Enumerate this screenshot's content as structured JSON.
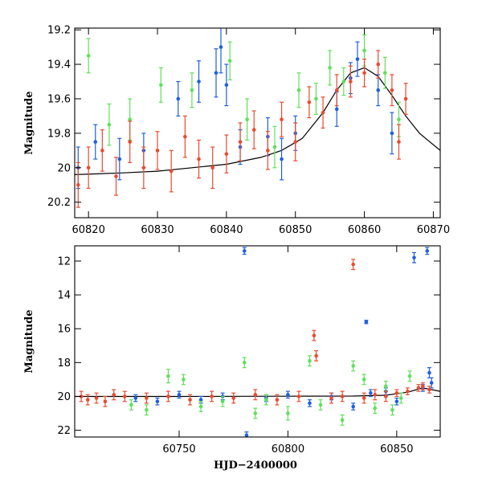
{
  "figure": {
    "x_axis_title": "HJD−2400000"
  },
  "chart_data": [
    {
      "type": "scatter",
      "name": "zoom-panel",
      "title": "",
      "xlabel": "",
      "ylabel": "Magnitude",
      "xlim": [
        60818,
        60871
      ],
      "ylim": [
        20.29,
        19.19
      ],
      "y_inverted": true,
      "x_ticks": [
        60820,
        60830,
        60840,
        60850,
        60860,
        60870
      ],
      "y_ticks": [
        19.2,
        19.4,
        19.6,
        19.8,
        20,
        20.2
      ],
      "y_tick_labels": [
        "19.2",
        "19.4",
        "19.6",
        "19.8",
        "20",
        "20.2"
      ],
      "grid": false,
      "legend": "none",
      "colors": {
        "blue": "#1f5fe0",
        "green": "#5fe05a",
        "red": "#ec4a2e",
        "model": "#000000"
      },
      "model_curve": {
        "x": [
          60818,
          60825,
          60830,
          60835,
          60840,
          60845,
          60848,
          60851,
          60854,
          60856,
          60858,
          60860,
          60862,
          60864,
          60866,
          60868,
          60871
        ],
        "y": [
          20.04,
          20.03,
          20.02,
          20.0,
          19.98,
          19.94,
          19.9,
          19.83,
          19.68,
          19.55,
          19.45,
          19.42,
          19.47,
          19.58,
          19.7,
          19.8,
          19.9
        ]
      },
      "series": [
        {
          "color": "blue",
          "x": [
            60818.5,
            60821,
            60824.5,
            60828,
            60833,
            60836,
            60838.5,
            60839.2,
            60840,
            60842,
            60846,
            60848,
            60850,
            60856,
            60858,
            60859,
            60862,
            60864
          ],
          "y": [
            20.0,
            19.85,
            19.95,
            19.9,
            19.6,
            19.5,
            19.45,
            19.3,
            19.52,
            19.88,
            19.82,
            19.95,
            19.8,
            19.66,
            19.48,
            19.37,
            19.55,
            19.8
          ],
          "err": [
            0.12,
            0.1,
            0.12,
            0.1,
            0.1,
            0.12,
            0.14,
            0.15,
            0.12,
            0.1,
            0.11,
            0.12,
            0.1,
            0.1,
            0.09,
            0.1,
            0.09,
            0.12
          ]
        },
        {
          "color": "green",
          "x": [
            60820,
            60823,
            60826,
            60830.5,
            60835,
            60840.5,
            60843,
            60847,
            60850.5,
            60853,
            60855,
            60857,
            60860,
            60863,
            60865
          ],
          "y": [
            19.35,
            19.75,
            19.72,
            19.52,
            19.55,
            19.38,
            19.72,
            19.88,
            19.55,
            19.6,
            19.42,
            19.5,
            19.32,
            19.45,
            19.72
          ],
          "err": [
            0.1,
            0.12,
            0.12,
            0.1,
            0.1,
            0.11,
            0.12,
            0.12,
            0.1,
            0.09,
            0.1,
            0.08,
            0.09,
            0.09,
            0.1
          ]
        },
        {
          "color": "red",
          "x": [
            60818.5,
            60820,
            60822,
            60824,
            60826,
            60828,
            60830,
            60832,
            60834,
            60836,
            60838,
            60840,
            60842,
            60844,
            60846,
            60848,
            60850,
            60852,
            60854,
            60856,
            60858,
            60860,
            60862,
            60864,
            60865,
            60866
          ],
          "y": [
            20.1,
            20.0,
            19.9,
            20.05,
            19.85,
            20.0,
            19.9,
            20.02,
            19.82,
            19.95,
            20.0,
            19.92,
            19.85,
            19.78,
            19.9,
            19.72,
            19.85,
            19.62,
            19.68,
            19.55,
            19.5,
            19.45,
            19.4,
            19.55,
            19.85,
            19.6
          ],
          "err": [
            0.13,
            0.12,
            0.12,
            0.11,
            0.12,
            0.12,
            0.11,
            0.12,
            0.12,
            0.11,
            0.12,
            0.11,
            0.11,
            0.11,
            0.11,
            0.1,
            0.11,
            0.09,
            0.09,
            0.09,
            0.09,
            0.08,
            0.08,
            0.09,
            0.1,
            0.09
          ]
        }
      ]
    },
    {
      "type": "scatter",
      "name": "full-panel",
      "title": "",
      "xlabel": "HJD−2400000",
      "ylabel": "Magnitude",
      "xlim": [
        60702,
        60870
      ],
      "ylim": [
        22.4,
        11.1
      ],
      "y_inverted": true,
      "x_ticks": [
        60750,
        60800,
        60850
      ],
      "y_ticks": [
        12,
        14,
        16,
        18,
        20,
        22
      ],
      "y_tick_labels": [
        "12",
        "14",
        "16",
        "18",
        "20",
        "22"
      ],
      "grid": false,
      "legend": "none",
      "colors": {
        "blue": "#1f5fe0",
        "green": "#5fe05a",
        "red": "#ec4a2e",
        "model": "#000000"
      },
      "model_curve": {
        "x": [
          60702,
          60750,
          60800,
          60830,
          60845,
          60855,
          60862,
          60870
        ],
        "y": [
          20.0,
          20.0,
          19.99,
          19.98,
          19.93,
          19.75,
          19.5,
          19.7
        ]
      },
      "series": [
        {
          "color": "blue",
          "x": [
            60730,
            60740,
            60750,
            60760,
            60770,
            60780,
            60781,
            60790,
            60800,
            60810,
            60820,
            60830,
            60836,
            60838,
            60845,
            60850,
            60858,
            60862,
            60864,
            60865,
            60866
          ],
          "y": [
            20.1,
            20.3,
            19.9,
            20.2,
            20.0,
            11.4,
            22.3,
            20.1,
            19.9,
            20.4,
            20.0,
            20.6,
            15.6,
            19.8,
            19.7,
            20.3,
            11.8,
            19.5,
            11.4,
            18.6,
            19.2
          ],
          "err": [
            0.2,
            0.2,
            0.2,
            0.2,
            0.2,
            0.2,
            0.2,
            0.2,
            0.2,
            0.2,
            0.2,
            0.2,
            0.1,
            0.2,
            0.2,
            0.2,
            0.3,
            0.2,
            0.2,
            0.3,
            0.3
          ]
        },
        {
          "color": "green",
          "x": [
            60728,
            60735,
            60745,
            60752,
            60760,
            60770,
            60780,
            60785,
            60790,
            60800,
            60810,
            60815,
            60825,
            60830,
            60835,
            60840,
            60845,
            60848,
            60852,
            60856
          ],
          "y": [
            20.5,
            20.8,
            18.8,
            19.0,
            20.6,
            20.3,
            18.0,
            21.0,
            20.2,
            21.0,
            17.9,
            20.5,
            21.4,
            18.2,
            19.0,
            20.7,
            19.4,
            20.8,
            20.1,
            18.8
          ],
          "err": [
            0.3,
            0.3,
            0.4,
            0.3,
            0.3,
            0.3,
            0.3,
            0.3,
            0.3,
            0.4,
            0.3,
            0.3,
            0.3,
            0.3,
            0.3,
            0.3,
            0.3,
            0.3,
            0.3,
            0.3
          ]
        },
        {
          "color": "red",
          "x": [
            60705,
            60708,
            60712,
            60716,
            60720,
            60725,
            60735,
            60745,
            60755,
            60765,
            60775,
            60785,
            60795,
            60805,
            60812,
            60813,
            60820,
            60825,
            60830,
            60835,
            60840,
            60845,
            60850,
            60855,
            60860,
            60862,
            60865
          ],
          "y": [
            20.0,
            20.2,
            20.1,
            20.3,
            19.9,
            20.0,
            20.1,
            20.0,
            20.2,
            20.0,
            20.1,
            19.9,
            20.2,
            20.0,
            16.4,
            17.6,
            20.1,
            20.0,
            12.2,
            20.1,
            19.9,
            20.0,
            19.8,
            19.7,
            19.5,
            19.4,
            19.6
          ],
          "err": [
            0.3,
            0.3,
            0.3,
            0.3,
            0.3,
            0.3,
            0.3,
            0.3,
            0.3,
            0.3,
            0.3,
            0.3,
            0.3,
            0.3,
            0.3,
            0.3,
            0.3,
            0.3,
            0.3,
            0.3,
            0.3,
            0.3,
            0.2,
            0.2,
            0.2,
            0.2,
            0.2
          ]
        }
      ]
    }
  ]
}
